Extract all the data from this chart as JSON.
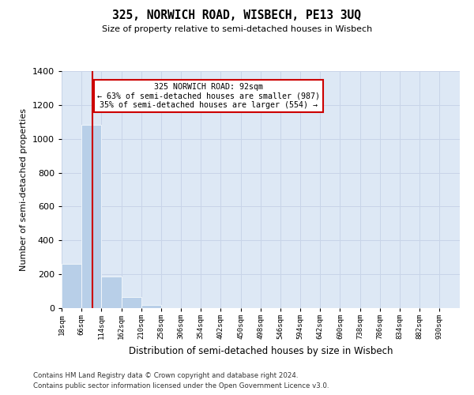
{
  "title": "325, NORWICH ROAD, WISBECH, PE13 3UQ",
  "subtitle": "Size of property relative to semi-detached houses in Wisbech",
  "xlabel": "Distribution of semi-detached houses by size in Wisbech",
  "ylabel": "Number of semi-detached properties",
  "property_size": 92,
  "pct_smaller": 63,
  "count_smaller": 987,
  "pct_larger": 35,
  "count_larger": 554,
  "annotation_text": "325 NORWICH ROAD: 92sqm\n← 63% of semi-detached houses are smaller (987)\n35% of semi-detached houses are larger (554) →",
  "bin_edges": [
    18,
    66,
    114,
    162,
    210,
    258,
    306,
    354,
    402,
    450,
    498,
    546,
    594,
    642,
    690,
    738,
    786,
    834,
    882,
    930,
    979
  ],
  "bin_counts": [
    262,
    1082,
    185,
    65,
    20,
    0,
    0,
    0,
    0,
    0,
    0,
    0,
    0,
    0,
    0,
    0,
    0,
    0,
    0,
    0
  ],
  "bar_color": "#b8cfe8",
  "vline_color": "#cc0000",
  "grid_color": "#c8d4e8",
  "bg_color": "#dde8f5",
  "annotation_box_color": "#cc0000",
  "ylim": [
    0,
    1400
  ],
  "yticks": [
    0,
    200,
    400,
    600,
    800,
    1000,
    1200,
    1400
  ],
  "footer_line1": "Contains HM Land Registry data © Crown copyright and database right 2024.",
  "footer_line2": "Contains public sector information licensed under the Open Government Licence v3.0."
}
